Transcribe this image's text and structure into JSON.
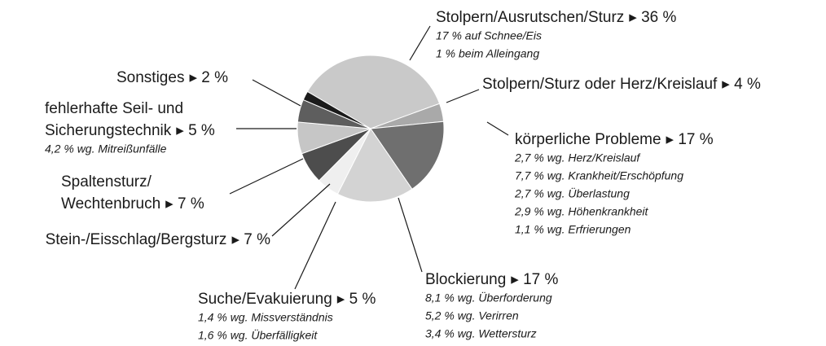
{
  "chart_data": {
    "type": "pie",
    "categories": [
      [
        "Stolpern/Ausrutschen/Sturz"
      ],
      [
        "Stolpern/Sturz oder Herz/Kreislauf"
      ],
      [
        "körperliche Probleme"
      ],
      [
        "Blockierung"
      ],
      [
        "Suche/Evakuierung"
      ],
      [
        "Stein-/Eisschlag/Bergsturz"
      ],
      [
        "Spaltensturz/",
        "Wechtenbruch"
      ],
      [
        "fehlerhafte Seil- und",
        "Sicherungstechnik"
      ],
      [
        "Sonstiges"
      ]
    ],
    "values": [
      36,
      4,
      17,
      17,
      5,
      7,
      7,
      5,
      2
    ],
    "value_labels": [
      "▸ 36 %",
      "▸ 4 %",
      "▸ 17 %",
      "▸ 17 %",
      "▸ 5 %",
      "▸ 7 %",
      "▸ 7 %",
      "▸ 5 %",
      "▸ 2 %"
    ],
    "notes": [
      [
        "17 % auf Schnee/Eis",
        "1 % beim Alleingang"
      ],
      [],
      [
        "2,7 % wg. Herz/Kreislauf",
        "7,7 % wg. Krankheit/Erschöpfung",
        "2,7 % wg. Überlastung",
        "2,9 % wg. Höhenkrankheit",
        "1,1 % wg. Erfrierungen"
      ],
      [
        "8,1 % wg. Überforderung",
        "5,2 % wg. Verirren",
        "3,4 % wg. Wettersturz"
      ],
      [
        "1,4 % wg. Missverständnis",
        "1,6 % wg. Überfälligkeit"
      ],
      [],
      [],
      [
        "4,2 % wg. Mitreißunfälle"
      ],
      []
    ],
    "colors": [
      "#c9c9c9",
      "#a9a9a9",
      "#6f6f6f",
      "#d3d3d3",
      "#efefef",
      "#4d4d4d",
      "#c6c6c6",
      "#5e5e5e",
      "#1b1b1b"
    ]
  }
}
